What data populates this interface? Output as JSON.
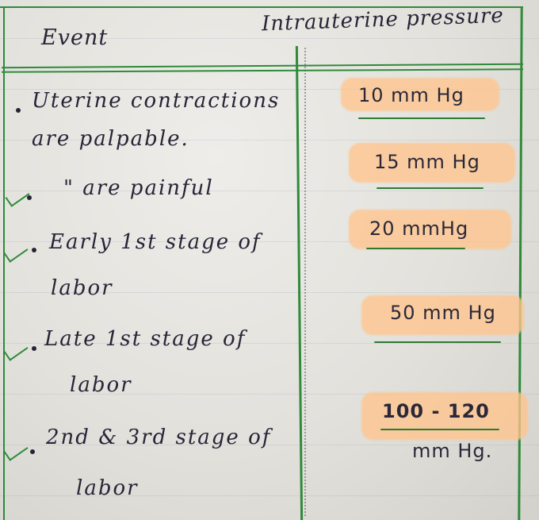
{
  "table": {
    "headers": {
      "event": "Event",
      "pressure": "Intrauterine pressure"
    },
    "rows": [
      {
        "event_lines": [
          "Uterine contractions",
          "are palpable."
        ],
        "pressure": "10 mm Hg"
      },
      {
        "event_lines": [
          "\" are painful"
        ],
        "pressure": "15 mm Hg"
      },
      {
        "event_lines": [
          "Early 1st stage of",
          "labor"
        ],
        "pressure": "20 mmHg"
      },
      {
        "event_lines": [
          "Late 1st stage of",
          "labor"
        ],
        "pressure": "50 mm Hg"
      },
      {
        "event_lines": [
          "2nd & 3rd stage of",
          "labor"
        ],
        "pressure_lines": [
          "100 - 120",
          "mm Hg."
        ]
      }
    ]
  },
  "colors": {
    "ink": "#272537",
    "border_green": "#2f8a3a",
    "highlight_orange": "#ffc48c",
    "paper": "#e4e3de"
  }
}
